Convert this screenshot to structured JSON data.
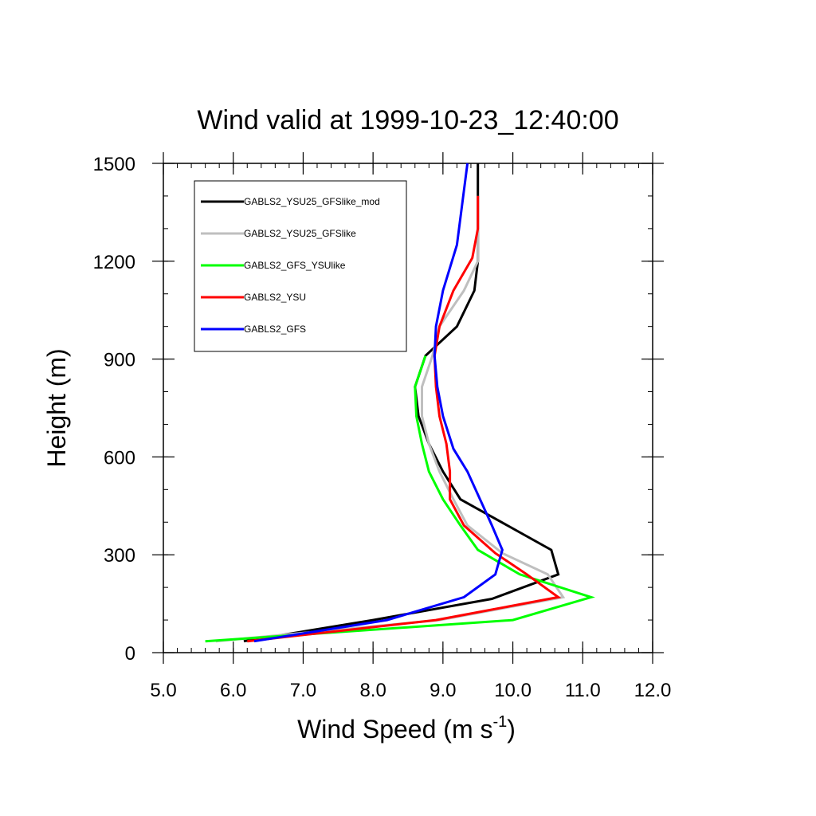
{
  "chart_data": {
    "type": "line",
    "title": "Wind valid at 1999-10-23_12:40:00",
    "xlabel": "Wind Speed (m s",
    "xlabel_superscript": "-1",
    "xlabel_suffix": ")",
    "ylabel": "Height (m)",
    "xlim": [
      5.0,
      12.0
    ],
    "ylim": [
      0,
      1500
    ],
    "x_ticks": [
      5.0,
      6.0,
      7.0,
      8.0,
      9.0,
      10.0,
      11.0,
      12.0
    ],
    "x_tick_labels": [
      "5.0",
      "6.0",
      "7.0",
      "8.0",
      "9.0",
      "10.0",
      "11.0",
      "12.0"
    ],
    "y_ticks": [
      0,
      300,
      600,
      900,
      1200,
      1500
    ],
    "y_tick_labels": [
      "0",
      "300",
      "600",
      "900",
      "1200",
      "1500"
    ],
    "grid": false,
    "legend_position": "top-left",
    "series": [
      {
        "name": "GABLS2_YSU25_GFSlike_mod",
        "color": "#000000",
        "points": [
          [
            6.15,
            35
          ],
          [
            8.0,
            100
          ],
          [
            9.7,
            165
          ],
          [
            10.65,
            240
          ],
          [
            10.55,
            315
          ],
          [
            9.25,
            470
          ],
          [
            9.0,
            555
          ],
          [
            8.8,
            640
          ],
          [
            8.65,
            725
          ],
          [
            8.6,
            815
          ],
          [
            8.75,
            910
          ],
          [
            9.2,
            1000
          ],
          [
            9.45,
            1110
          ],
          [
            9.5,
            1200
          ],
          [
            9.5,
            1300
          ],
          [
            9.5,
            1400
          ],
          [
            9.5,
            1500
          ]
        ]
      },
      {
        "name": "GABLS2_YSU25_GFSlike",
        "color": "#bfbfbf",
        "points": [
          [
            5.75,
            35
          ],
          [
            8.95,
            100
          ],
          [
            10.72,
            170
          ],
          [
            10.5,
            240
          ],
          [
            9.85,
            305
          ],
          [
            9.35,
            390
          ],
          [
            9.15,
            470
          ],
          [
            8.95,
            555
          ],
          [
            8.8,
            640
          ],
          [
            8.7,
            725
          ],
          [
            8.7,
            815
          ],
          [
            8.85,
            910
          ],
          [
            8.95,
            1000
          ],
          [
            9.3,
            1110
          ],
          [
            9.5,
            1200
          ],
          [
            9.5,
            1300
          ],
          [
            9.5,
            1400
          ]
        ]
      },
      {
        "name": "GABLS2_GFS_YSUlike",
        "color": "#00ff00",
        "points": [
          [
            5.6,
            35
          ],
          [
            10.0,
            100
          ],
          [
            11.12,
            170
          ],
          [
            10.1,
            240
          ],
          [
            9.5,
            315
          ],
          [
            9.25,
            390
          ],
          [
            9.0,
            470
          ],
          [
            8.8,
            555
          ],
          [
            8.7,
            640
          ],
          [
            8.62,
            725
          ],
          [
            8.6,
            815
          ],
          [
            8.75,
            910
          ]
        ]
      },
      {
        "name": "GABLS2_YSU",
        "color": "#ff0000",
        "points": [
          [
            6.2,
            35
          ],
          [
            8.9,
            100
          ],
          [
            10.65,
            170
          ],
          [
            10.2,
            240
          ],
          [
            9.75,
            305
          ],
          [
            9.3,
            390
          ],
          [
            9.1,
            470
          ],
          [
            9.1,
            555
          ],
          [
            9.05,
            640
          ],
          [
            8.95,
            725
          ],
          [
            8.9,
            815
          ],
          [
            8.88,
            910
          ],
          [
            8.95,
            1000
          ],
          [
            9.15,
            1110
          ],
          [
            9.42,
            1210
          ],
          [
            9.5,
            1300
          ],
          [
            9.5,
            1400
          ]
        ]
      },
      {
        "name": "GABLS2_GFS",
        "color": "#0000ff",
        "points": [
          [
            6.3,
            35
          ],
          [
            8.2,
            100
          ],
          [
            9.3,
            170
          ],
          [
            9.75,
            240
          ],
          [
            9.85,
            315
          ],
          [
            9.7,
            390
          ],
          [
            9.35,
            555
          ],
          [
            9.15,
            625
          ],
          [
            9.0,
            725
          ],
          [
            8.92,
            815
          ],
          [
            8.88,
            910
          ],
          [
            8.9,
            1000
          ],
          [
            9.0,
            1110
          ],
          [
            9.2,
            1250
          ],
          [
            9.35,
            1500
          ]
        ]
      }
    ]
  }
}
